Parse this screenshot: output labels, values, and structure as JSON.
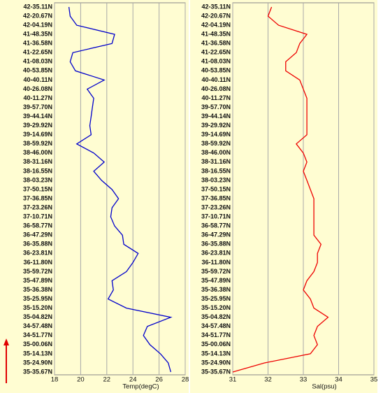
{
  "chart_data": [
    {
      "type": "line",
      "x_label": "Temp(degC)",
      "color": "#0000cc",
      "categories": [
        "42-35.11N",
        "42-20.67N",
        "42-04.19N",
        "41-48.35N",
        "41-36.58N",
        "41-22.65N",
        "41-08.03N",
        "40-53.85N",
        "40-40.11N",
        "40-26.08N",
        "40-11.27N",
        "39-57.70N",
        "39-44.14N",
        "39-29.92N",
        "39-14.69N",
        "38-59.92N",
        "38-46.00N",
        "38-31.16N",
        "38-16.55N",
        "38-03.23N",
        "37-50.15N",
        "37-36.85N",
        "37-23.26N",
        "37-10.71N",
        "36-58.77N",
        "36-47.29N",
        "36-35.88N",
        "36-23.81N",
        "36-11.80N",
        "35-59.72N",
        "35-47.89N",
        "35-36.38N",
        "35-25.95N",
        "35-15.20N",
        "35-04.82N",
        "34-57.48N",
        "34-51.77N",
        "35-00.06N",
        "35-14.13N",
        "35-24.90N",
        "35-35.67N"
      ],
      "values": [
        19.1,
        19.2,
        19.7,
        22.6,
        22.4,
        19.4,
        19.2,
        19.6,
        21.8,
        20.5,
        21.0,
        20.9,
        20.8,
        20.7,
        20.8,
        19.7,
        21.0,
        21.8,
        21.0,
        21.6,
        22.4,
        22.9,
        22.4,
        22.3,
        22.6,
        23.2,
        23.3,
        24.4,
        24.0,
        23.5,
        22.4,
        22.5,
        22.1,
        23.5,
        26.9,
        25.1,
        24.8,
        25.3,
        26.1,
        26.7,
        26.9
      ],
      "xlim": [
        18,
        28
      ],
      "xticks": [
        18,
        20,
        22,
        24,
        26,
        28
      ],
      "grid": true
    },
    {
      "type": "line",
      "x_label": "Sal(psu)",
      "color": "#ee0000",
      "categories": [
        "42-35.11N",
        "42-20.67N",
        "42-04.19N",
        "41-48.35N",
        "41-36.58N",
        "41-22.65N",
        "41-08.03N",
        "40-53.85N",
        "40-40.11N",
        "40-26.08N",
        "40-11.27N",
        "39-57.70N",
        "39-44.14N",
        "39-29.92N",
        "39-14.69N",
        "38-59.92N",
        "38-46.00N",
        "38-31.16N",
        "38-16.55N",
        "38-03.23N",
        "37-50.15N",
        "37-36.85N",
        "37-23.26N",
        "37-10.71N",
        "36-58.77N",
        "36-47.29N",
        "36-35.88N",
        "36-23.81N",
        "36-11.80N",
        "35-59.72N",
        "35-47.89N",
        "35-36.38N",
        "35-25.95N",
        "35-15.20N",
        "35-04.82N",
        "34-57.48N",
        "34-51.77N",
        "35-00.06N",
        "35-14.13N",
        "35-24.90N",
        "35-35.67N"
      ],
      "values": [
        32.1,
        32.0,
        32.3,
        33.1,
        32.9,
        32.8,
        32.5,
        32.5,
        32.9,
        33.0,
        33.1,
        33.1,
        33.1,
        33.1,
        33.1,
        32.8,
        33.0,
        33.1,
        33.0,
        33.1,
        33.2,
        33.3,
        33.3,
        33.3,
        33.3,
        33.3,
        33.5,
        33.4,
        33.4,
        33.3,
        33.1,
        33.0,
        33.2,
        33.3,
        33.7,
        33.4,
        33.3,
        33.4,
        33.2,
        31.9,
        31.0
      ],
      "xlim": [
        31,
        35
      ],
      "xticks": [
        31,
        32,
        33,
        34,
        35
      ],
      "grid": true
    }
  ]
}
